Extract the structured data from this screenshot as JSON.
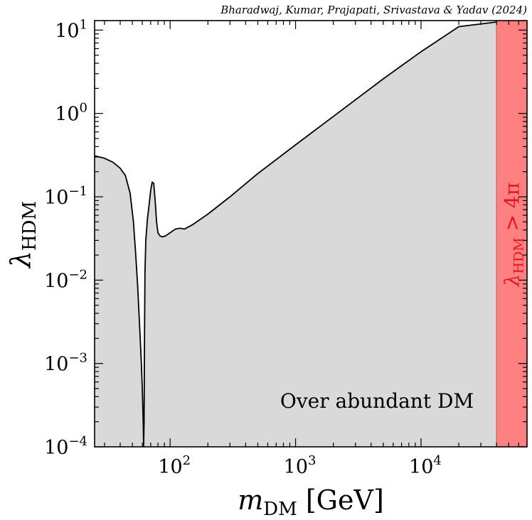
{
  "chart_data": {
    "type": "area",
    "credit": "Bharadwaj, Kumar, Prajapati, Srivastava & Yadav (2024)",
    "xlabel": {
      "symbol": "m",
      "sub": "DM",
      "unit": "[GeV]"
    },
    "ylabel": {
      "symbol": "λ",
      "sub": "HDM"
    },
    "x_scale": "log",
    "y_scale": "log",
    "xlim": [
      25,
      70000
    ],
    "ylim": [
      0.0001,
      13
    ],
    "x_ticks": [
      {
        "value": 100,
        "base": "10",
        "exp": "2"
      },
      {
        "value": 1000,
        "base": "10",
        "exp": "3"
      },
      {
        "value": 10000,
        "base": "10",
        "exp": "4"
      }
    ],
    "y_ticks": [
      {
        "value": 10,
        "base": "10",
        "exp": "1"
      },
      {
        "value": 1,
        "base": "10",
        "exp": "0"
      },
      {
        "value": 0.1,
        "base": "10",
        "exp": "−1"
      },
      {
        "value": 0.01,
        "base": "10",
        "exp": "−2"
      },
      {
        "value": 0.001,
        "base": "10",
        "exp": "−3"
      },
      {
        "value": 0.0001,
        "base": "10",
        "exp": "−4"
      }
    ],
    "region_label": "Over abundant DM",
    "excluded_band": {
      "x_from": 40000,
      "x_to": 70000,
      "color": "#ff8080",
      "edge_color": "#c06060"
    },
    "excluded_label": {
      "symbol": "λ",
      "sub": "HDM",
      "rest": " > 4π",
      "color": "#e8141e"
    },
    "fill_color": "#d9d9d9",
    "line_color": "#000000",
    "curve": {
      "x": [
        25,
        30,
        35,
        40,
        44,
        48,
        51,
        53,
        55,
        57,
        59,
        60,
        61,
        61.5,
        62,
        62.5,
        63,
        64,
        66,
        68,
        70,
        72,
        74,
        76,
        78,
        80,
        83,
        87,
        92,
        100,
        110,
        120,
        130,
        150,
        200,
        300,
        500,
        1000,
        2000,
        5000,
        10000,
        20000,
        40000
      ],
      "y": [
        0.31,
        0.29,
        0.26,
        0.22,
        0.18,
        0.11,
        0.05,
        0.022,
        0.009,
        0.003,
        0.001,
        0.0005,
        0.0002,
        0.0001,
        0.0002,
        0.002,
        0.012,
        0.03,
        0.055,
        0.08,
        0.12,
        0.15,
        0.145,
        0.09,
        0.05,
        0.037,
        0.034,
        0.033,
        0.034,
        0.037,
        0.041,
        0.042,
        0.041,
        0.046,
        0.062,
        0.1,
        0.19,
        0.42,
        0.92,
        2.6,
        5.5,
        11.0,
        12.5
      ]
    }
  }
}
